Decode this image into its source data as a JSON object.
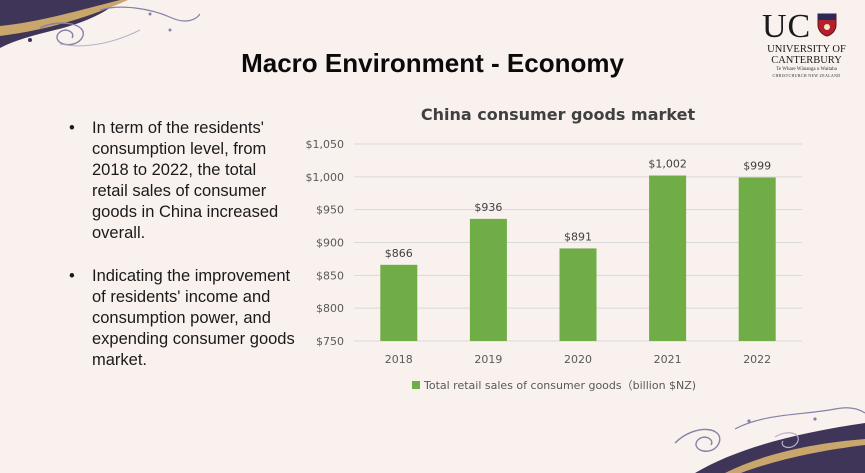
{
  "slide": {
    "title": "Macro Environment - Economy",
    "bullets": [
      "In term of the residents' consumption level, from 2018 to 2022, the total retail sales of consumer goods in China increased overall.",
      "Indicating the improvement of residents' income and consumption power, and expending consumer goods market."
    ],
    "bullet_symbol": "•"
  },
  "logo": {
    "letters": "UC",
    "line1": "UNIVERSITY OF",
    "line2": "CANTERBURY",
    "line3": "Te Whare Wānanga o Waitaha",
    "line4": "CHRISTCHURCH NEW ZEALAND"
  },
  "colors": {
    "background": "#f8f1ee",
    "bar": "#70ad47",
    "deco_purple": "#3f3558",
    "deco_gold": "#c9a66b"
  },
  "chart_data": {
    "type": "bar",
    "title": "China consumer goods market",
    "categories": [
      "2018",
      "2019",
      "2020",
      "2021",
      "2022"
    ],
    "series": [
      {
        "name": "Total retail sales of consumer goods（billion $NZ)",
        "values": [
          866,
          936,
          891,
          1002,
          999
        ]
      }
    ],
    "data_labels": [
      "$866",
      "$936",
      "$891",
      "$1,002",
      "$999"
    ],
    "ylim": [
      750,
      1050
    ],
    "y_ticks": [
      750,
      800,
      850,
      900,
      950,
      1000,
      1050
    ],
    "y_tick_labels": [
      "$750",
      "$800",
      "$850",
      "$900",
      "$950",
      "$1,000",
      "$1,050"
    ],
    "xlabel": "",
    "ylabel": "",
    "grid": true,
    "legend_position": "bottom"
  }
}
